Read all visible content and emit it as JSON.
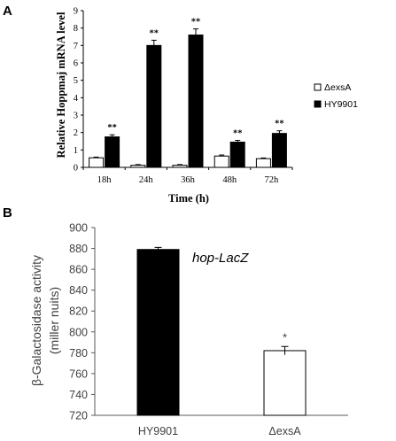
{
  "panels": {
    "a_label": "A",
    "b_label": "B"
  },
  "chart_data": [
    {
      "type": "bar",
      "categories": [
        "18h",
        "24h",
        "36h",
        "48h",
        "72h"
      ],
      "series": [
        {
          "name": "ΔexsA",
          "color": "#ffffff",
          "values": [
            0.55,
            0.12,
            0.12,
            0.65,
            0.5
          ],
          "errors": [
            0.04,
            0.04,
            0.04,
            0.06,
            0.04
          ],
          "significance": [
            "",
            "",
            "",
            "",
            ""
          ]
        },
        {
          "name": "HY9901",
          "color": "#000000",
          "values": [
            1.75,
            7.0,
            7.6,
            1.45,
            1.95
          ],
          "errors": [
            0.12,
            0.3,
            0.35,
            0.1,
            0.15
          ],
          "significance": [
            "**",
            "**",
            "**",
            "**",
            "**"
          ]
        }
      ],
      "xlabel": "Time (h)",
      "ylabel": "Relative Hoppmaj mRNA level",
      "ylim": [
        0,
        9
      ],
      "yticks": [
        0,
        1,
        2,
        3,
        4,
        5,
        6,
        7,
        8,
        9
      ],
      "grid": false,
      "legend": "right"
    },
    {
      "type": "bar",
      "categories": [
        "HY9901",
        "ΔexsA"
      ],
      "values": [
        879,
        782
      ],
      "errors": [
        2,
        4
      ],
      "colors": [
        "#000000",
        "#ffffff"
      ],
      "significance": [
        "",
        "*"
      ],
      "annotation": "hop-LacZ",
      "ylabel_line1": "β-Galactosidase activity",
      "ylabel_line2": "(miller nuits)",
      "ylim": [
        720,
        900
      ],
      "yticks": [
        720,
        740,
        760,
        780,
        800,
        820,
        840,
        860,
        880,
        900
      ],
      "grid": false
    }
  ]
}
